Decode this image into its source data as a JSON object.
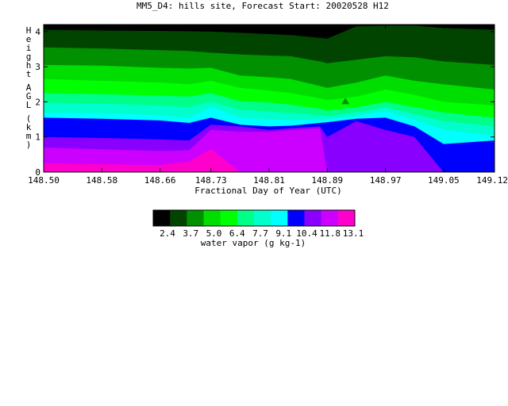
{
  "chart_data": {
    "type": "heatmap",
    "title": "MM5_D4: hills site,  Forecast Start: 20020528 H12",
    "xlabel": "Fractional Day of Year (UTC)",
    "ylabel": "Height AGL (km)",
    "x_ticks": [
      "148.50",
      "148.58",
      "148.66",
      "148.73",
      "148.81",
      "148.89",
      "148.97",
      "149.05",
      "149.12"
    ],
    "x_tick_values": [
      148.5,
      148.58,
      148.66,
      148.73,
      148.81,
      148.89,
      148.97,
      149.05,
      149.12
    ],
    "xlim": [
      148.5,
      149.12
    ],
    "y_ticks": [
      "0",
      "1",
      "2",
      "3",
      "4"
    ],
    "y_tick_values": [
      0,
      1,
      2,
      3,
      4
    ],
    "ylim": [
      0,
      4.2
    ],
    "colorbar": {
      "label": "water vapor (g kg-1)",
      "tick_labels": [
        "2.4",
        "3.7",
        "5.0",
        "6.4",
        "7.7",
        "9.1",
        "10.4",
        "11.8",
        "13.1"
      ],
      "colors": [
        "#000000",
        "#004400",
        "#009000",
        "#00dd00",
        "#00ff00",
        "#00ff88",
        "#00ffcc",
        "#00ffff",
        "#0000ff",
        "#8a00ff",
        "#cc00ff",
        "#ff00cc"
      ]
    },
    "x_samples": [
      148.5,
      148.58,
      148.66,
      148.7,
      148.73,
      148.77,
      148.81,
      148.84,
      148.88,
      148.89,
      148.93,
      148.97,
      149.01,
      149.05,
      149.12
    ],
    "contour_levels_km": [
      {
        "color": "#004400",
        "heights": [
          4.05,
          4.03,
          4.02,
          4.01,
          4.0,
          3.97,
          3.93,
          3.9,
          3.82,
          3.8,
          4.15,
          4.17,
          4.17,
          4.1,
          4.05
        ]
      },
      {
        "color": "#009000",
        "heights": [
          3.55,
          3.52,
          3.47,
          3.45,
          3.4,
          3.35,
          3.32,
          3.3,
          3.15,
          3.1,
          3.2,
          3.3,
          3.27,
          3.15,
          3.05
        ]
      },
      {
        "color": "#00dd00",
        "heights": [
          3.05,
          3.03,
          2.97,
          2.95,
          2.97,
          2.75,
          2.7,
          2.65,
          2.45,
          2.4,
          2.55,
          2.75,
          2.6,
          2.5,
          2.35
        ]
      },
      {
        "color": "#00ff00",
        "heights": [
          2.65,
          2.6,
          2.55,
          2.5,
          2.6,
          2.4,
          2.32,
          2.25,
          2.1,
          2.05,
          2.15,
          2.35,
          2.2,
          2.0,
          1.9
        ]
      },
      {
        "color": "#00ff88",
        "heights": [
          2.25,
          2.22,
          2.18,
          2.15,
          2.25,
          2.02,
          1.98,
          1.92,
          1.8,
          1.75,
          1.85,
          2.0,
          1.85,
          1.7,
          1.55
        ]
      },
      {
        "color": "#00ffcc",
        "heights": [
          1.98,
          1.95,
          1.9,
          1.85,
          2.0,
          1.78,
          1.72,
          1.68,
          1.62,
          1.6,
          1.7,
          1.85,
          1.65,
          1.45,
          1.3
        ]
      },
      {
        "color": "#00ffff",
        "heights": [
          1.7,
          1.68,
          1.62,
          1.55,
          1.85,
          1.55,
          1.5,
          1.48,
          1.48,
          1.5,
          1.6,
          1.75,
          1.5,
          1.2,
          1.05
        ]
      },
      {
        "color": "#0000ff",
        "heights": [
          1.55,
          1.52,
          1.47,
          1.4,
          1.55,
          1.35,
          1.3,
          1.32,
          1.4,
          1.42,
          1.52,
          1.55,
          1.3,
          0.8,
          0.9
        ]
      },
      {
        "color": "#8a00ff",
        "heights": [
          1.0,
          0.97,
          0.93,
          0.9,
          1.35,
          1.3,
          1.2,
          1.25,
          1.3,
          1.0,
          1.45,
          1.2,
          1.0,
          0.0,
          0.0
        ]
      },
      {
        "color": "#cc00ff",
        "heights": [
          0.7,
          0.65,
          0.6,
          0.62,
          1.2,
          1.15,
          1.15,
          1.2,
          1.25,
          0.0,
          0.0,
          0.0,
          0.0,
          0.0,
          0.0
        ]
      },
      {
        "color": "#ff00cc",
        "heights": [
          0.25,
          0.22,
          0.2,
          0.3,
          0.65,
          0.0,
          0.0,
          0.0,
          0.0,
          0.0,
          0.0,
          0.0,
          0.0,
          0.0,
          0.0
        ]
      }
    ],
    "marker": {
      "x": 148.915,
      "y": 2.0,
      "shape": "triangle",
      "color": "#008800"
    }
  }
}
